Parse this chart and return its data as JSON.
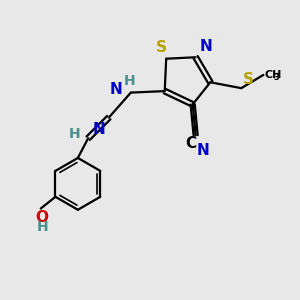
{
  "bg_color": "#e8e8e8",
  "bond_color": "#000000",
  "S_color": "#b8a000",
  "N_color": "#0000cc",
  "O_color": "#cc0000",
  "H_color": "#4a9090",
  "figsize": [
    3.0,
    3.0
  ],
  "dpi": 100,
  "xlim": [
    0,
    10
  ],
  "ylim": [
    0,
    10
  ]
}
